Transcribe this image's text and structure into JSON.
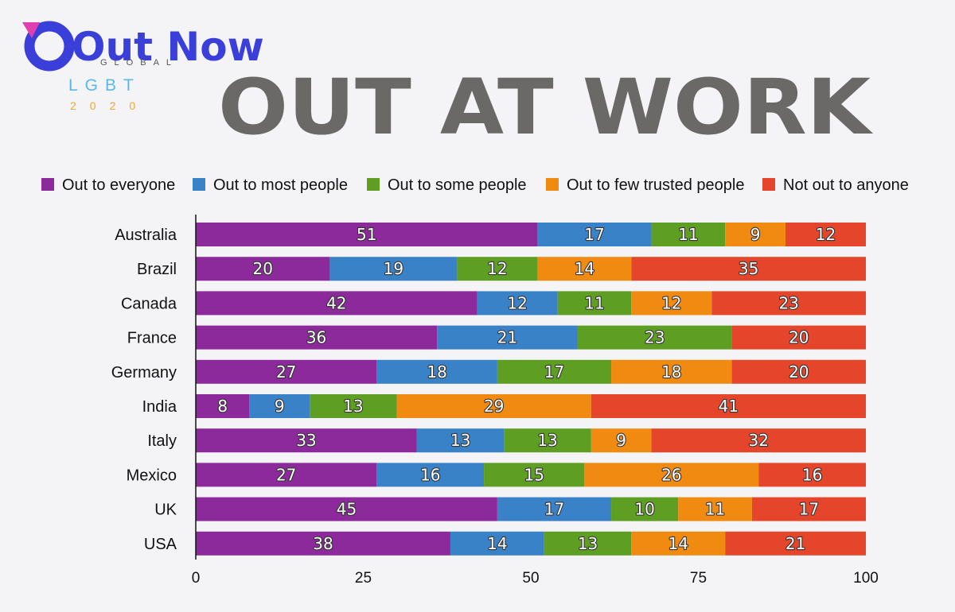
{
  "logo": {
    "brand": "Out Now",
    "global": "GLOBAL",
    "lgbt": "LGBT",
    "year": "2020"
  },
  "chart_data": {
    "type": "bar",
    "orientation": "horizontal",
    "stacked": true,
    "title": "OUT AT WORK",
    "categories": [
      "Australia",
      "Brazil",
      "Canada",
      "France",
      "Germany",
      "India",
      "Italy",
      "Mexico",
      "UK",
      "USA"
    ],
    "series": [
      {
        "name": "Out to everyone",
        "color": "#8c2a9c",
        "values": [
          51,
          20,
          42,
          36,
          27,
          8,
          33,
          27,
          45,
          38
        ]
      },
      {
        "name": "Out to most people",
        "color": "#3a82c8",
        "values": [
          17,
          19,
          12,
          21,
          18,
          9,
          13,
          16,
          17,
          14
        ]
      },
      {
        "name": "Out to some people",
        "color": "#5e9e22",
        "values": [
          11,
          12,
          11,
          23,
          17,
          13,
          13,
          15,
          10,
          13
        ]
      },
      {
        "name": "Out to few trusted people",
        "color": "#f08a10",
        "values": [
          9,
          14,
          12,
          0,
          18,
          29,
          9,
          26,
          11,
          14
        ]
      },
      {
        "name": "Not out to anyone",
        "color": "#e5452a",
        "values": [
          12,
          35,
          23,
          20,
          20,
          41,
          32,
          16,
          17,
          21
        ]
      }
    ],
    "xticks": [
      0,
      25,
      50,
      75,
      100
    ],
    "xlim": [
      0,
      100
    ],
    "legend_position": "top",
    "grid": false
  }
}
